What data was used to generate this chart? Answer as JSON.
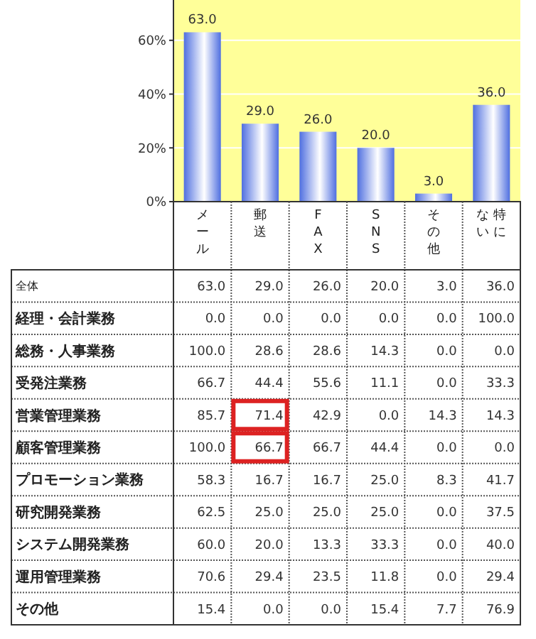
{
  "chart_data": [
    {
      "type": "bar",
      "categories": [
        "メール",
        "郵送",
        "FAX",
        "SNS",
        "その他",
        "特にない"
      ],
      "values": [
        63.0,
        29.0,
        26.0,
        20.0,
        3.0,
        36.0
      ],
      "color": "#4f6fe0",
      "value_labels": [
        "63.0",
        "29.0",
        "26.0",
        "20.0",
        "3.0",
        "36.0"
      ],
      "ylim": [
        0,
        75
      ],
      "yticks": [
        {
          "value": 0,
          "label": "0%"
        },
        {
          "value": 20,
          "label": "20%"
        },
        {
          "value": 40,
          "label": "40%"
        },
        {
          "value": 60,
          "label": "60%"
        }
      ],
      "grid": "y"
    },
    {
      "type": "heatmap",
      "categories": [
        "メール",
        "郵送",
        "FAX",
        "SNS",
        "その他",
        "特にない"
      ],
      "tick_labels": "y",
      "y_categories": [
        "全体",
        "経理・会計業務",
        "総務・人事業務",
        "受発注業務",
        "営業管理業務",
        "顧客管理業務",
        "プロモーション業務",
        "研究開発業務",
        "システム開発業務",
        "運用管理業務",
        "その他"
      ],
      "cells": [
        [
          63.0,
          29.0,
          26.0,
          20.0,
          3.0,
          36.0
        ],
        [
          0.0,
          0.0,
          0.0,
          0.0,
          0.0,
          100.0
        ],
        [
          100.0,
          28.6,
          28.6,
          14.3,
          0.0,
          0.0
        ],
        [
          66.7,
          44.4,
          55.6,
          11.1,
          0.0,
          33.3
        ],
        [
          85.7,
          71.4,
          42.9,
          0.0,
          14.3,
          14.3
        ],
        [
          100.0,
          66.7,
          66.7,
          44.4,
          0.0,
          0.0
        ],
        [
          58.3,
          16.7,
          16.7,
          25.0,
          8.3,
          41.7
        ],
        [
          62.5,
          25.0,
          25.0,
          25.0,
          0.0,
          37.5
        ],
        [
          60.0,
          20.0,
          13.3,
          33.3,
          0.0,
          40.0
        ],
        [
          70.6,
          29.4,
          23.5,
          11.8,
          0.0,
          29.4
        ],
        [
          15.4,
          0.0,
          0.0,
          15.4,
          7.7,
          76.9
        ]
      ],
      "cell_labels": [
        [
          "63.0",
          "29.0",
          "26.0",
          "20.0",
          "3.0",
          "36.0"
        ],
        [
          "0.0",
          "0.0",
          "0.0",
          "0.0",
          "0.0",
          "100.0"
        ],
        [
          "100.0",
          "28.6",
          "28.6",
          "14.3",
          "0.0",
          "0.0"
        ],
        [
          "66.7",
          "44.4",
          "55.6",
          "11.1",
          "0.0",
          "33.3"
        ],
        [
          "85.7",
          "71.4",
          "42.9",
          "0.0",
          "14.3",
          "14.3"
        ],
        [
          "100.0",
          "66.7",
          "66.7",
          "44.4",
          "0.0",
          "0.0"
        ],
        [
          "58.3",
          "16.7",
          "16.7",
          "25.0",
          "8.3",
          "41.7"
        ],
        [
          "62.5",
          "25.0",
          "25.0",
          "25.0",
          "0.0",
          "37.5"
        ],
        [
          "60.0",
          "20.0",
          "13.3",
          "33.3",
          "0.0",
          "40.0"
        ],
        [
          "70.6",
          "29.4",
          "23.5",
          "11.8",
          "0.0",
          "29.4"
        ],
        [
          "15.4",
          "0.0",
          "0.0",
          "15.4",
          "7.7",
          "76.9"
        ]
      ],
      "annotations": [
        {
          "x": "郵送",
          "y": "営業管理業務"
        },
        {
          "x": "郵送",
          "y": "顧客管理業務"
        }
      ]
    }
  ]
}
